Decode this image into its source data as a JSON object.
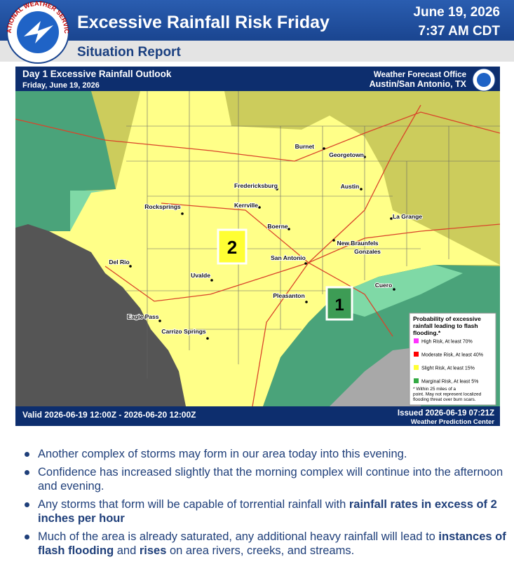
{
  "header": {
    "title": "Excessive Rainfall Risk Friday",
    "date": "June 19, 2026",
    "time": "7:37 AM CDT",
    "subtitle": "Situation Report",
    "logo_text": "NATIONAL WEATHER SERVICE"
  },
  "map": {
    "title": "Day 1 Excessive Rainfall Outlook",
    "date": "Friday, June 19, 2026",
    "office_line1": "Weather Forecast Office",
    "office_line2": "Austin/San Antonio, TX",
    "valid": "Valid 2026-06-19 12:00Z - 2026-06-20 12:00Z",
    "issued": "Issued 2026-06-19 07:21Z",
    "issuer": "Weather Prediction Center",
    "risk_labels": [
      "2",
      "1"
    ],
    "cities": [
      "Burnet",
      "Georgetown",
      "Fredericksburg",
      "Austin",
      "Rocksprings",
      "Kerrville",
      "Boerne",
      "La Grange",
      "New Braunfels",
      "Gonzales",
      "San Antonio",
      "Del Rio",
      "Uvalde",
      "Cuero",
      "Pleasanton",
      "Eagle Pass",
      "Carrizo Springs"
    ],
    "legend": {
      "title": "Probability of excessive rainfall leading to flash flooding.*",
      "items": [
        {
          "label": "High Risk, At least 70%",
          "color": "#ff33ff"
        },
        {
          "label": "Moderate Risk, At least 40%",
          "color": "#ff0000"
        },
        {
          "label": "Slight Risk, At least 15%",
          "color": "#ffff33"
        },
        {
          "label": "Marginal Risk, At least 5%",
          "color": "#33aa44"
        }
      ],
      "note": "* Within 25 miles of a point. May not represent localized flooding threat over burn scars."
    }
  },
  "bullets": [
    [
      {
        "text": "Another complex of storms may form in our area today into this evening.",
        "bold": false
      }
    ],
    [
      {
        "text": "Confidence has increased slightly that the morning complex will continue into the afternoon and evening.",
        "bold": false
      }
    ],
    [
      {
        "text": "Any storms that form will be capable of torrential rainfall with ",
        "bold": false
      },
      {
        "text": "rainfall rates in excess of 2 inches per hour",
        "bold": true
      }
    ],
    [
      {
        "text": "Much of the area is already saturated, any additional heavy rainfall will lead to ",
        "bold": false
      },
      {
        "text": "instances of flash flooding",
        "bold": true
      },
      {
        "text": " and ",
        "bold": false
      },
      {
        "text": "rises",
        "bold": true
      },
      {
        "text": " on area rivers, creeks, and streams.",
        "bold": false
      }
    ]
  ]
}
